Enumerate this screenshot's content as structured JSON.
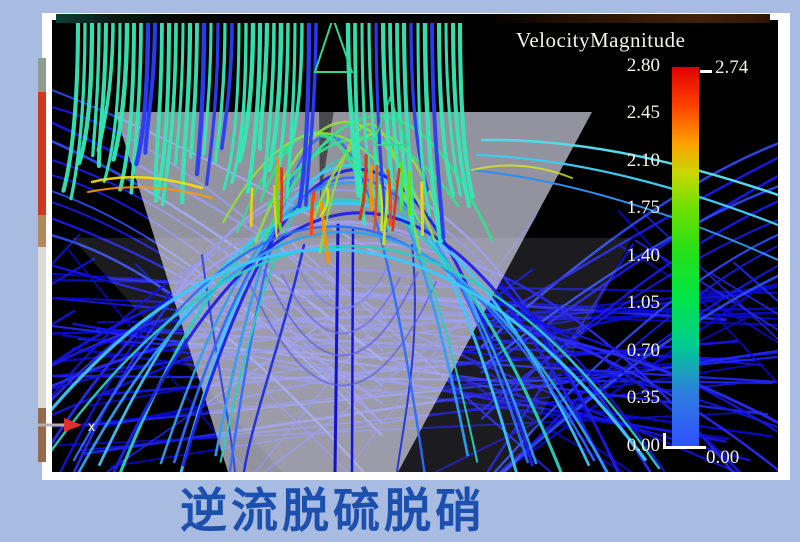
{
  "page": {
    "background_color": "#a8bce2",
    "caption": "逆流脱硫脱硝",
    "caption_color": "#1d4fae"
  },
  "viewer": {
    "frame_color": "#ffffff",
    "canvas_color": "#000000"
  },
  "legend": {
    "title": "VelocityMagnitude",
    "tick_labels": [
      "2.80",
      "2.45",
      "2.10",
      "1.75",
      "1.40",
      "1.05",
      "0.70",
      "0.35",
      "0.00"
    ],
    "max_label": "2.74",
    "min_label": "0.00",
    "scale_min": 0.0,
    "scale_max": 2.8,
    "gradient_top_to_bottom": [
      "#e00000",
      "#ff4000",
      "#ffa000",
      "#c8d800",
      "#70e000",
      "#28e018",
      "#00e448",
      "#00cc90",
      "#2e7ce0",
      "#3050ff"
    ]
  },
  "axis_indicator": {
    "label": "x",
    "arrow_color": "#e03030"
  }
}
